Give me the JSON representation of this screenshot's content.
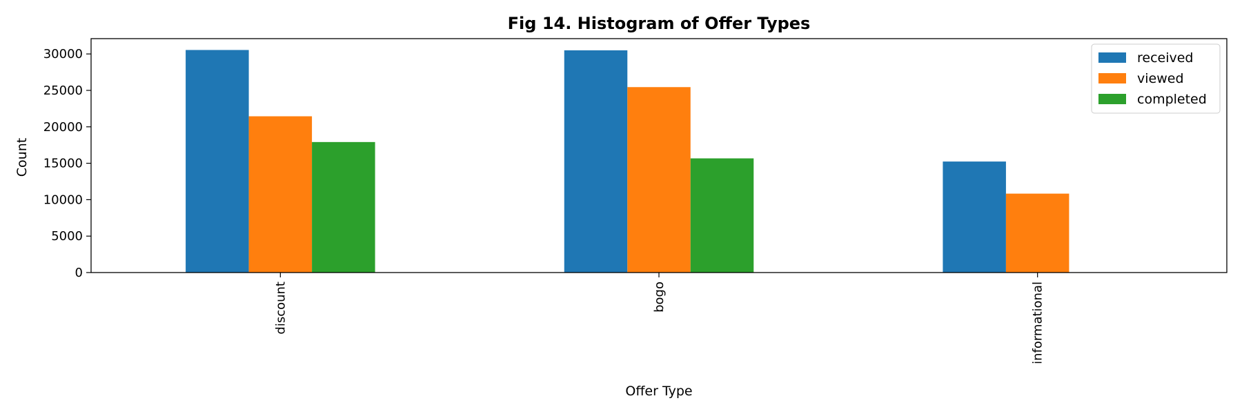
{
  "chart_data": {
    "type": "bar",
    "title": "Fig 14. Histogram of Offer Types",
    "xlabel": "Offer Type",
    "ylabel": "Count",
    "categories": [
      "discount",
      "bogo",
      "informational"
    ],
    "series": [
      {
        "name": "received",
        "color": "#1f77b4",
        "values": [
          30543,
          30499,
          15235
        ]
      },
      {
        "name": "viewed",
        "color": "#ff7f0e",
        "values": [
          21445,
          25449,
          10831
        ]
      },
      {
        "name": "completed",
        "color": "#2ca02c",
        "values": [
          17910,
          15669,
          0
        ]
      }
    ],
    "ylim": [
      0,
      32100
    ],
    "yticks": [
      0,
      5000,
      10000,
      15000,
      20000,
      25000,
      30000
    ],
    "legend": "top-right",
    "grid": false
  }
}
